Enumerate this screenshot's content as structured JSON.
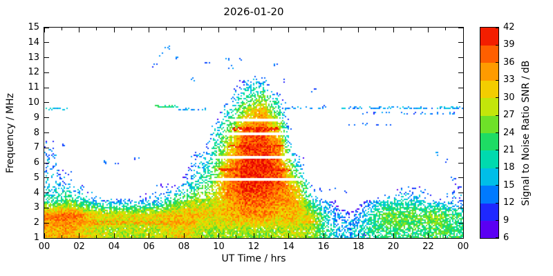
{
  "page": {
    "background": "#ffffff"
  },
  "chart_data": {
    "type": "heatmap",
    "title": "2026-01-20",
    "xlabel": "UT Time / hrs",
    "ylabel": "Frequency / MHz",
    "x_range": [
      0,
      24
    ],
    "y_range": [
      1,
      15
    ],
    "grid_on": false,
    "x_tick_values": [
      0,
      2,
      4,
      6,
      8,
      10,
      12,
      14,
      16,
      18,
      20,
      22,
      24
    ],
    "x_tick_labels": [
      "00",
      "02",
      "04",
      "06",
      "08",
      "10",
      "12",
      "14",
      "16",
      "18",
      "20",
      "22",
      "00"
    ],
    "x_minor_step": 1,
    "y_ticks": [
      1,
      2,
      3,
      4,
      5,
      6,
      7,
      8,
      9,
      10,
      11,
      12,
      13,
      14,
      15
    ],
    "colorbar": {
      "label": "Signal to Noise Ratio SNR / dB",
      "min": 6,
      "max": 42,
      "ticks": [
        6,
        9,
        12,
        15,
        18,
        21,
        24,
        27,
        30,
        33,
        36,
        39,
        42
      ],
      "stops": [
        [
          6,
          "#7a00e6"
        ],
        [
          9,
          "#3c00ff"
        ],
        [
          12,
          "#0050ff"
        ],
        [
          15,
          "#00a4ff"
        ],
        [
          18,
          "#00d8d0"
        ],
        [
          21,
          "#00dc8c"
        ],
        [
          24,
          "#3cdc3c"
        ],
        [
          27,
          "#a0e614"
        ],
        [
          30,
          "#e6e600"
        ],
        [
          33,
          "#ffb400"
        ],
        [
          36,
          "#ff8200"
        ],
        [
          39,
          "#ff3c00"
        ],
        [
          42,
          "#e60000"
        ]
      ]
    },
    "grid": {
      "time_hours": [
        0,
        1,
        2,
        3,
        4,
        5,
        6,
        7,
        8,
        9,
        10,
        11,
        12,
        13,
        14,
        15,
        16,
        17,
        18,
        19,
        20,
        21,
        22,
        23
      ],
      "freq_band_lower_edges_mhz": [
        1,
        2,
        3,
        4,
        5,
        6,
        7,
        8,
        9,
        10,
        11,
        12,
        13,
        14
      ],
      "snr_db": [
        [
          33,
          34,
          30,
          28,
          28,
          28,
          28,
          31,
          30,
          27,
          27,
          27,
          27,
          27,
          29,
          26,
          18,
          15,
          20,
          22,
          22,
          22,
          24,
          22
        ],
        [
          36,
          38,
          33,
          31,
          31,
          31,
          31,
          33,
          33,
          31,
          33,
          35,
          35,
          33,
          33,
          27,
          15,
          12,
          18,
          25,
          25,
          24,
          27,
          22
        ],
        [
          20,
          24,
          17,
          14,
          14,
          14,
          15,
          22,
          27,
          28,
          33,
          37,
          37,
          35,
          33,
          17,
          11,
          0,
          11,
          17,
          18,
          17,
          14,
          14
        ],
        [
          17,
          14,
          11,
          0,
          0,
          0,
          11,
          12,
          18,
          25,
          36,
          40,
          40,
          38,
          30,
          11,
          0,
          0,
          0,
          0,
          11,
          11,
          0,
          11
        ],
        [
          15,
          11,
          0,
          0,
          0,
          0,
          0,
          0,
          14,
          21,
          34,
          40,
          41,
          38,
          20,
          0,
          0,
          0,
          0,
          0,
          0,
          0,
          0,
          0
        ],
        [
          14,
          0,
          0,
          0,
          0,
          0,
          11,
          0,
          12,
          18,
          30,
          39,
          40,
          36,
          13,
          0,
          0,
          0,
          0,
          0,
          0,
          0,
          11,
          0
        ],
        [
          12,
          0,
          0,
          0,
          0,
          0,
          0,
          0,
          0,
          14,
          27,
          38,
          39,
          33,
          0,
          0,
          0,
          0,
          0,
          0,
          0,
          0,
          0,
          0
        ],
        [
          0,
          0,
          0,
          0,
          0,
          0,
          0,
          0,
          0,
          11,
          22,
          34,
          37,
          27,
          0,
          0,
          0,
          0,
          0,
          0,
          0,
          0,
          0,
          0
        ],
        [
          0,
          0,
          0,
          0,
          0,
          0,
          0,
          0,
          0,
          0,
          16,
          28,
          33,
          20,
          0,
          0,
          0,
          0,
          0,
          0,
          0,
          0,
          0,
          0
        ],
        [
          0,
          0,
          0,
          0,
          0,
          0,
          0,
          0,
          0,
          0,
          12,
          20,
          24,
          13,
          0,
          0,
          0,
          0,
          0,
          0,
          0,
          0,
          0,
          0
        ],
        [
          0,
          0,
          0,
          0,
          0,
          0,
          0,
          0,
          0,
          0,
          0,
          13,
          15,
          0,
          0,
          0,
          0,
          0,
          0,
          0,
          0,
          0,
          0,
          0
        ],
        [
          0,
          0,
          0,
          0,
          0,
          0,
          0,
          0,
          0,
          0,
          0,
          0,
          0,
          0,
          0,
          0,
          0,
          0,
          0,
          0,
          0,
          0,
          0,
          0
        ],
        [
          0,
          0,
          0,
          0,
          0,
          0,
          0,
          0,
          0,
          0,
          0,
          0,
          0,
          0,
          0,
          0,
          0,
          0,
          0,
          0,
          0,
          0,
          0,
          0
        ],
        [
          0,
          0,
          0,
          0,
          0,
          0,
          0,
          0,
          0,
          0,
          0,
          0,
          0,
          0,
          0,
          0,
          0,
          0,
          0,
          0,
          0,
          0,
          0,
          0
        ]
      ]
    },
    "lines": [
      {
        "f": 9.65,
        "t0": 0.0,
        "t1": 1.3,
        "snr": 16,
        "density": 0.55
      },
      {
        "f": 9.8,
        "t0": 6.3,
        "t1": 7.6,
        "snr": 21,
        "density": 0.75
      },
      {
        "f": 9.6,
        "t0": 7.6,
        "t1": 9.2,
        "snr": 15,
        "density": 0.35
      },
      {
        "f": 9.7,
        "t0": 13.6,
        "t1": 16.2,
        "snr": 14,
        "density": 0.3
      },
      {
        "f": 9.7,
        "t0": 16.9,
        "t1": 23.9,
        "snr": 15,
        "density": 0.5
      },
      {
        "f": 9.35,
        "t0": 18.2,
        "t1": 23.5,
        "snr": 13,
        "density": 0.2
      },
      {
        "f": 8.6,
        "t0": 17.2,
        "t1": 19.8,
        "snr": 12,
        "density": 0.15
      },
      {
        "f": 6.55,
        "t0": 0.1,
        "t1": 0.9,
        "snr": 14,
        "density": 0.3
      }
    ],
    "ridges": [
      {
        "f": 2.05,
        "t0": 0.0,
        "t1": 8.6,
        "snr": 35,
        "hw": 0.1
      },
      {
        "f": 2.5,
        "t0": 0.3,
        "t1": 2.2,
        "snr": 37,
        "hw": 0.12
      },
      {
        "f": 8.3,
        "t0": 10.8,
        "t1": 13.4,
        "snr": 41,
        "hw": 0.1
      },
      {
        "f": 7.15,
        "t0": 10.5,
        "t1": 13.6,
        "snr": 40,
        "hw": 0.08
      },
      {
        "f": 5.6,
        "t0": 10.0,
        "t1": 14.0,
        "snr": 40,
        "hw": 0.08
      },
      {
        "f": 2.1,
        "t0": 14.7,
        "t1": 15.6,
        "snr": 33,
        "hw": 0.1
      }
    ],
    "gaps": [
      {
        "f": 6.35,
        "t0": 9.6,
        "t1": 14.6,
        "hw": 0.09
      },
      {
        "f": 7.95,
        "t0": 10.2,
        "t1": 14.2,
        "hw": 0.08
      },
      {
        "f": 4.9,
        "t0": 9.6,
        "t1": 14.8,
        "hw": 0.06
      },
      {
        "f": 8.85,
        "t0": 10.6,
        "t1": 13.6,
        "hw": 0.06
      }
    ],
    "points": [
      [
        0.4,
        7.0,
        13
      ],
      [
        1.1,
        7.2,
        12
      ],
      [
        3.5,
        6.1,
        14
      ],
      [
        4.1,
        5.9,
        12
      ],
      [
        5.3,
        6.3,
        12
      ],
      [
        6.6,
        13.3,
        15
      ],
      [
        7.0,
        13.7,
        13
      ],
      [
        7.5,
        13.1,
        14
      ],
      [
        6.3,
        12.5,
        12
      ],
      [
        8.4,
        11.6,
        14
      ],
      [
        9.3,
        12.7,
        12
      ],
      [
        10.4,
        12.9,
        13
      ],
      [
        10.7,
        12.4,
        14
      ],
      [
        11.1,
        13.0,
        12
      ],
      [
        13.2,
        12.5,
        13
      ],
      [
        13.6,
        11.5,
        12
      ],
      [
        15.4,
        10.9,
        12
      ],
      [
        15.9,
        9.9,
        13
      ],
      [
        16.5,
        4.3,
        13
      ],
      [
        17.3,
        4.1,
        12
      ],
      [
        22.5,
        6.6,
        14
      ],
      [
        22.9,
        6.2,
        13
      ],
      [
        23.4,
        5.0,
        12
      ],
      [
        18.3,
        1.3,
        11
      ],
      [
        17.6,
        1.6,
        12
      ]
    ]
  }
}
